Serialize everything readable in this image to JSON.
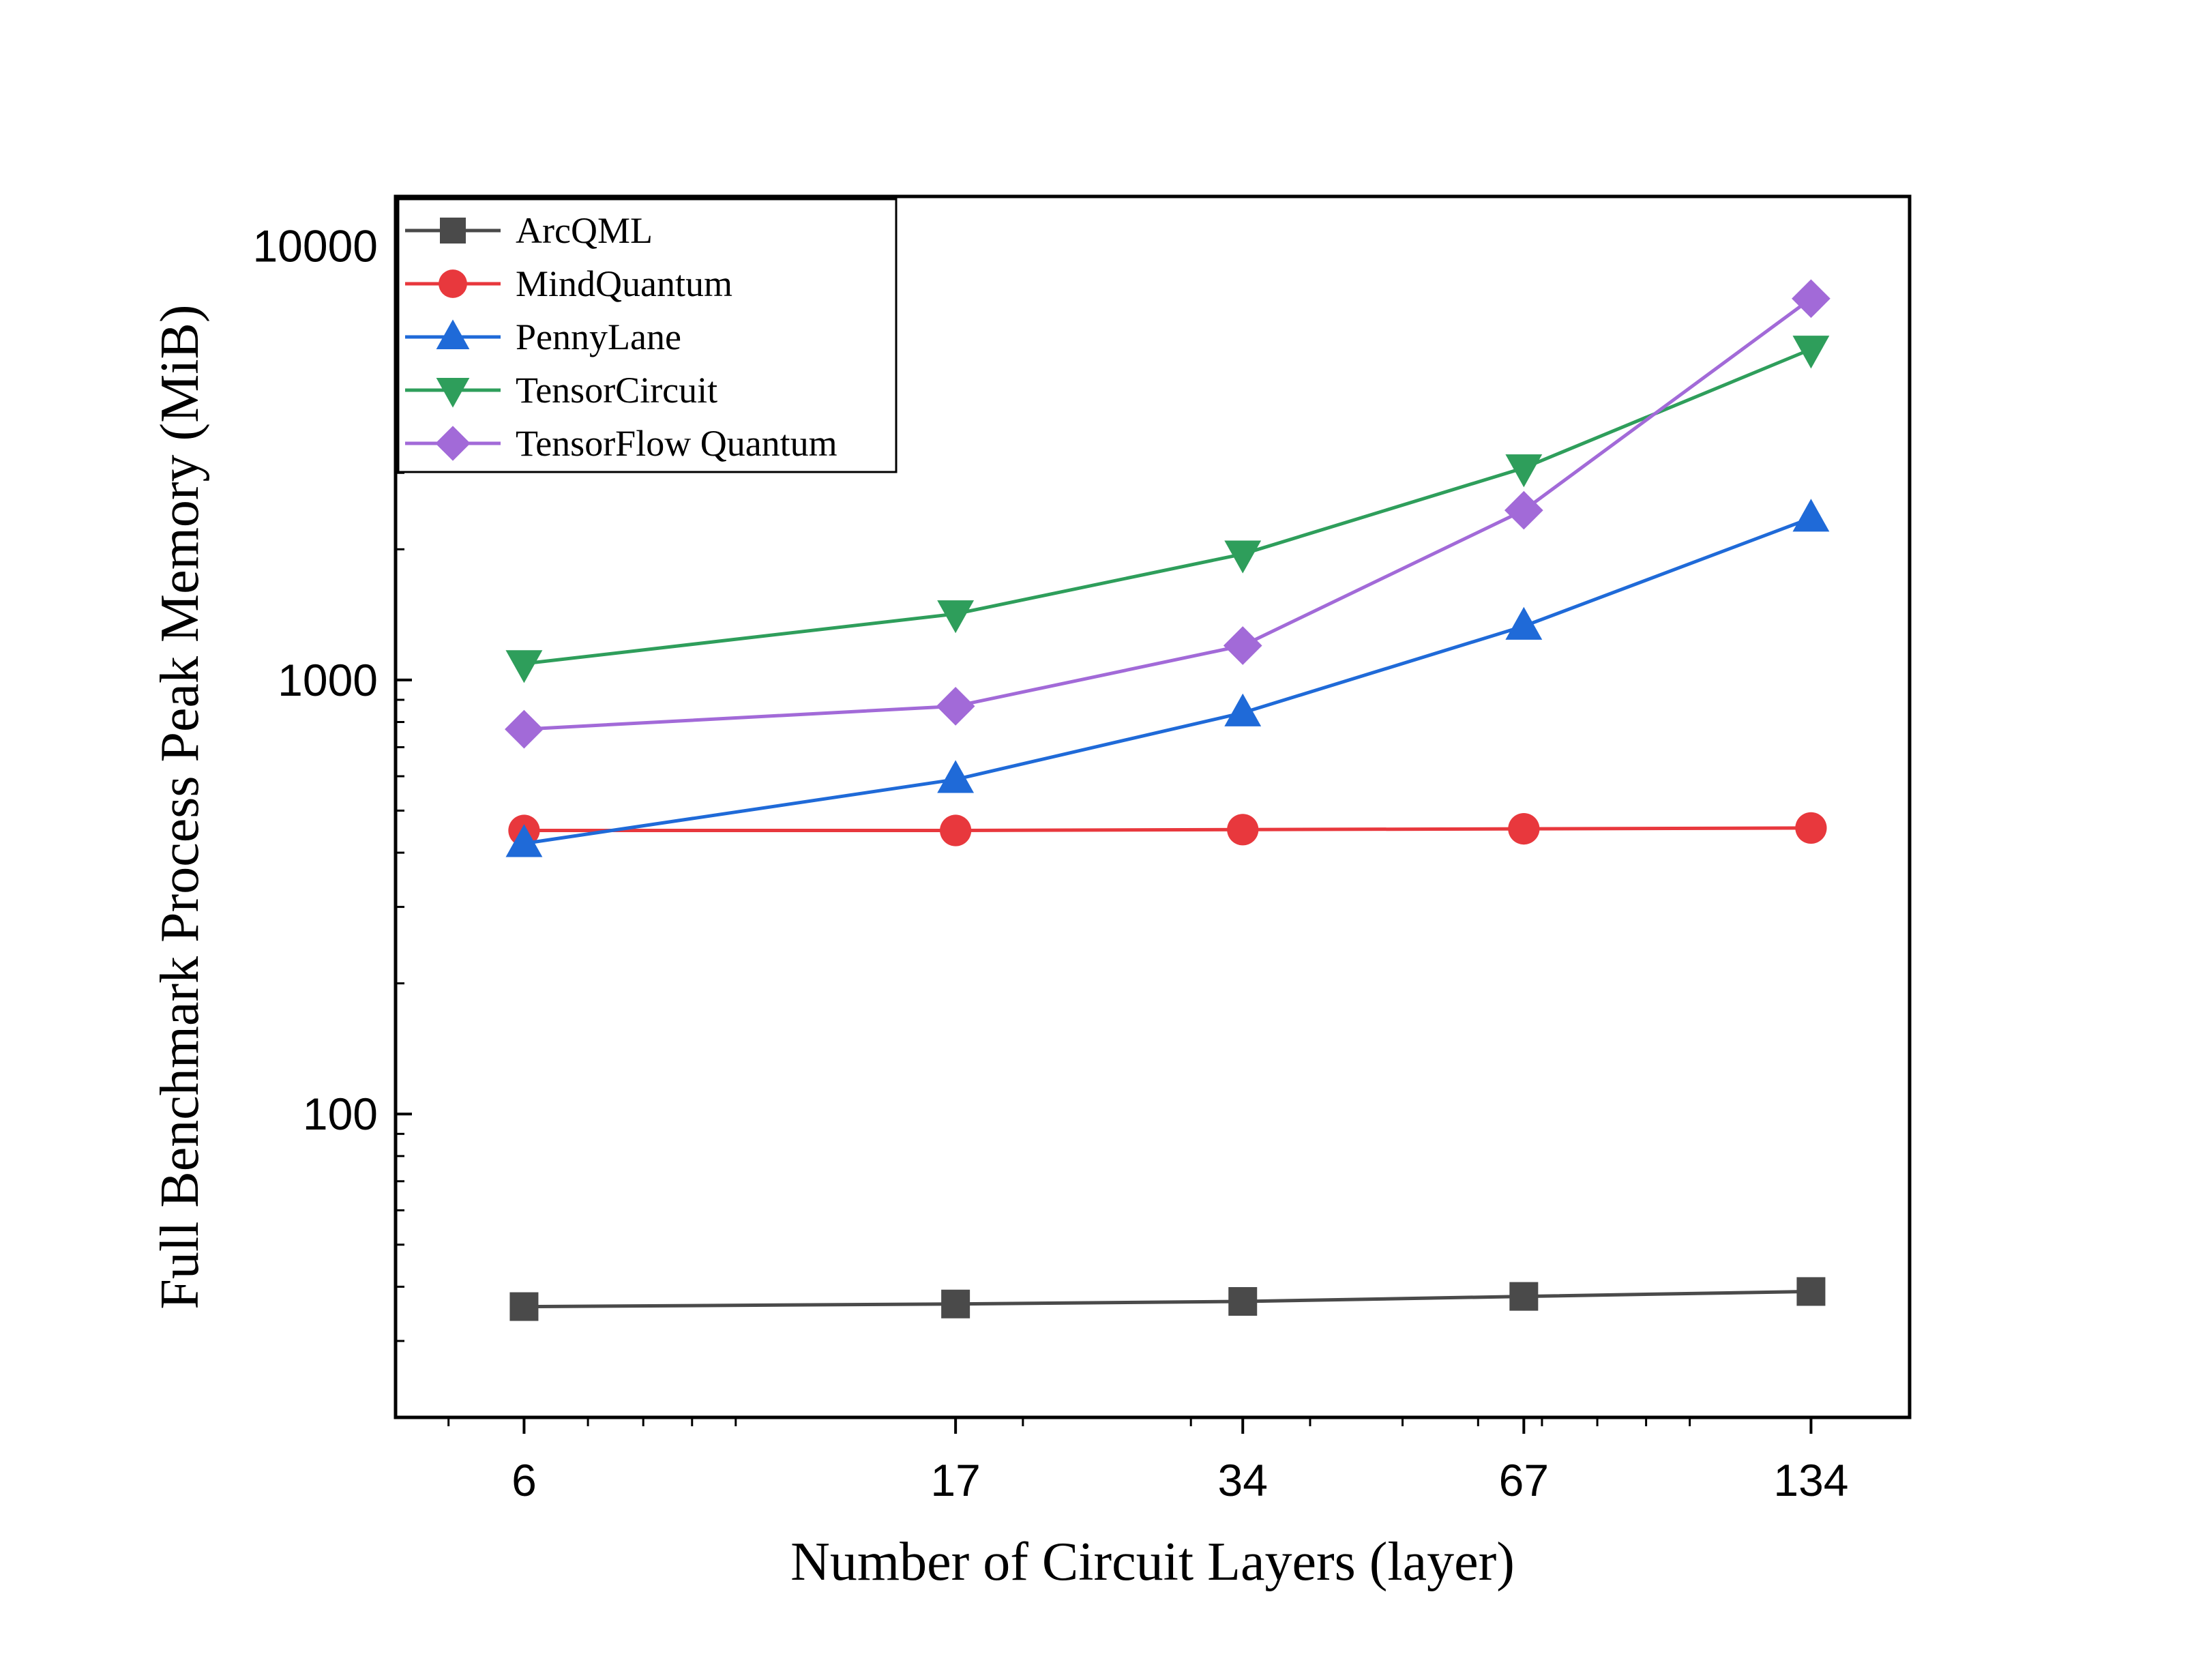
{
  "chart_data": {
    "type": "line",
    "title": "",
    "xlabel": "Number of Circuit Layers (layer)",
    "ylabel": "Full Benchmark Process Peak Memory (MiB)",
    "x_scale": "log",
    "y_scale": "log",
    "x": [
      6,
      17,
      34,
      67,
      134
    ],
    "x_tick_labels": [
      "6",
      "17",
      "34",
      "67",
      "134"
    ],
    "y_ticks": [
      100,
      1000,
      10000
    ],
    "y_tick_labels": [
      "100",
      "1000",
      "10000"
    ],
    "xlim": [
      4.4,
      170
    ],
    "ylim": [
      20,
      13000
    ],
    "grid": false,
    "legend_position": "top-left",
    "series": [
      {
        "name": "ArcQML",
        "color": "#4a4a4a",
        "marker": "square",
        "values": [
          36,
          36.5,
          37,
          38,
          39
        ]
      },
      {
        "name": "MindQuantum",
        "color": "#e8383d",
        "marker": "circle",
        "values": [
          450,
          450,
          452,
          454,
          456
        ]
      },
      {
        "name": "PennyLane",
        "color": "#1f6ad8",
        "marker": "triangle-up",
        "values": [
          420,
          590,
          840,
          1330,
          2360
        ]
      },
      {
        "name": "TensorCircuit",
        "color": "#2e9e5b",
        "marker": "triangle-down",
        "values": [
          1090,
          1420,
          1950,
          3080,
          5780
        ]
      },
      {
        "name": "TensorFlow Quantum",
        "color": "#a26ad8",
        "marker": "diamond",
        "values": [
          770,
          870,
          1200,
          2460,
          7560
        ]
      }
    ]
  }
}
